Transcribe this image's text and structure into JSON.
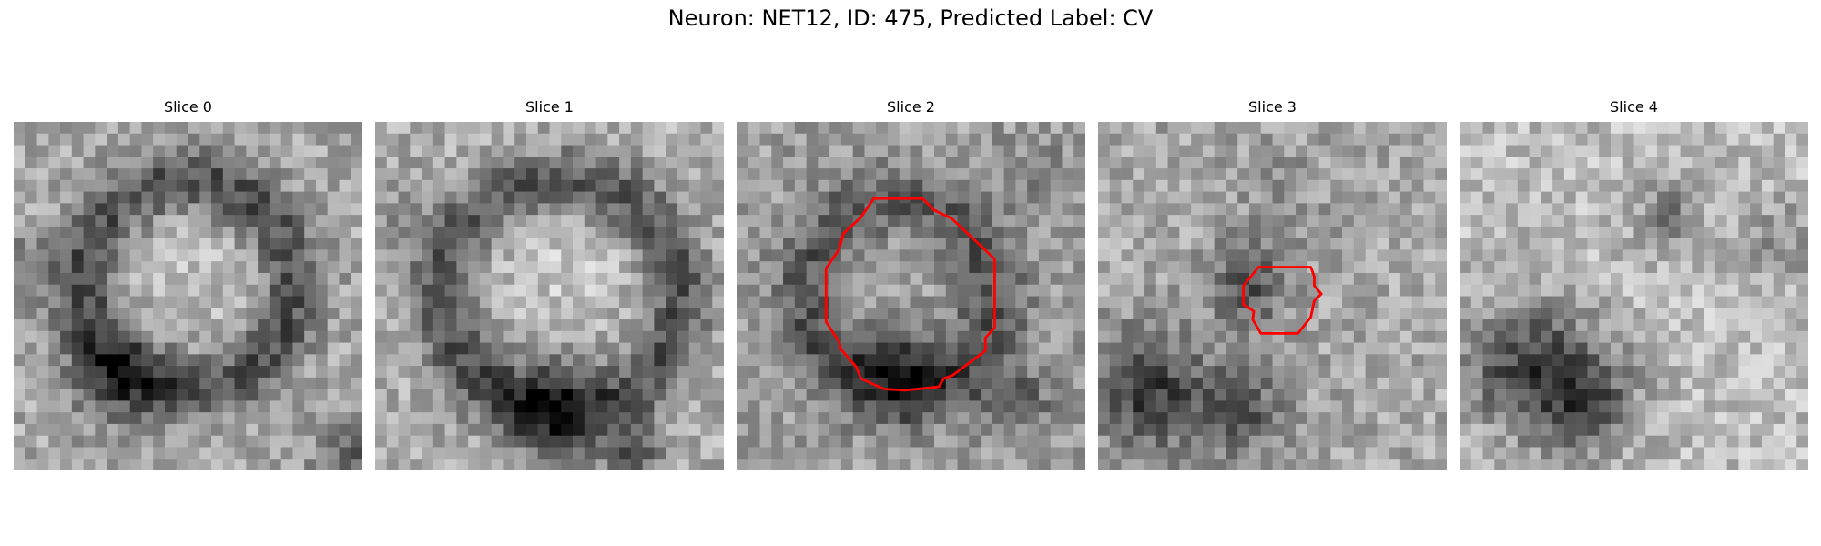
{
  "figure": {
    "title": "Neuron: NET12, ID: 475, Predicted Label: CV"
  },
  "colors": {
    "contour": "#ff0000"
  },
  "panels": [
    {
      "title": "Slice 0",
      "icon": "grayscale-microscopy-slice",
      "has_contour": false
    },
    {
      "title": "Slice 1",
      "icon": "grayscale-microscopy-slice",
      "has_contour": false
    },
    {
      "title": "Slice 2",
      "icon": "grayscale-microscopy-slice",
      "has_contour": true
    },
    {
      "title": "Slice 3",
      "icon": "grayscale-microscopy-slice",
      "has_contour": true
    },
    {
      "title": "Slice 4",
      "icon": "grayscale-microscopy-slice",
      "has_contour": false
    }
  ]
}
